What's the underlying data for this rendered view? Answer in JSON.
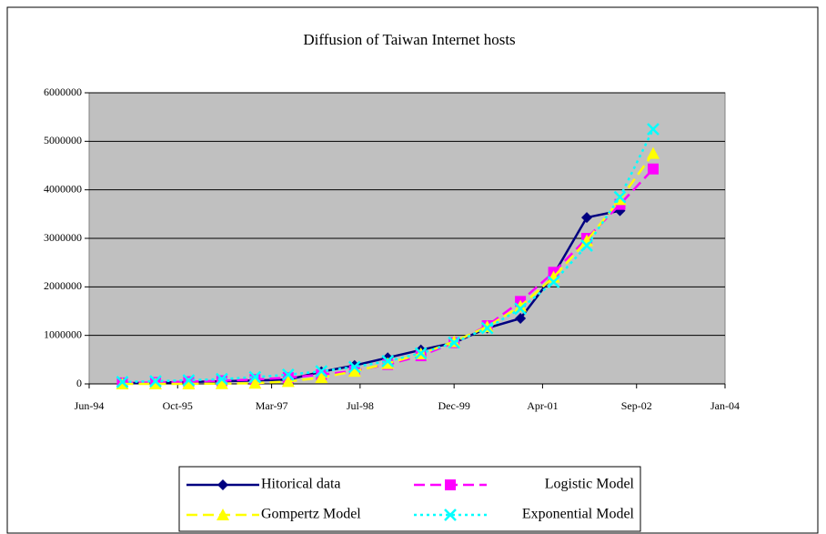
{
  "chart_data": {
    "type": "line",
    "title": "Diffusion of Taiwan Internet hosts",
    "x": [
      "1994-12",
      "1995-06",
      "1995-12",
      "1996-06",
      "1996-12",
      "1997-06",
      "1997-12",
      "1998-06",
      "1998-12",
      "1999-06",
      "1999-12",
      "2000-06",
      "2000-12",
      "2001-06",
      "2001-12",
      "2002-06",
      "2002-12"
    ],
    "series": [
      {
        "name": "Hitorical data",
        "color": "#000080",
        "marker": "diamond",
        "dash": "solid",
        "values": [
          14000,
          25000,
          40000,
          55000,
          70000,
          90000,
          250000,
          380000,
          540000,
          700000,
          850000,
          1150000,
          1350000,
          2250000,
          3430000,
          3570000,
          null
        ]
      },
      {
        "name": "Logistic Model",
        "color": "#ff00ff",
        "marker": "square",
        "dash": "dashed",
        "values": [
          20000,
          30000,
          45000,
          65000,
          90000,
          130000,
          190000,
          270000,
          400000,
          580000,
          850000,
          1200000,
          1700000,
          2300000,
          3000000,
          3700000,
          4430000
        ]
      },
      {
        "name": "Gompertz Model",
        "color": "#ffff00",
        "marker": "triangle",
        "dash": "dashed",
        "values": [
          0,
          0,
          0,
          5000,
          15000,
          50000,
          130000,
          260000,
          420000,
          620000,
          870000,
          1180000,
          1600000,
          2200000,
          2950000,
          3800000,
          4750000
        ]
      },
      {
        "name": "Exponential Model",
        "color": "#00ffff",
        "marker": "x",
        "dash": "dotted",
        "values": [
          40000,
          55000,
          75000,
          100000,
          140000,
          190000,
          260000,
          350000,
          470000,
          630000,
          850000,
          1150000,
          1550000,
          2100000,
          2850000,
          3850000,
          5250000
        ]
      }
    ],
    "xlim": [
      "1994-06",
      "2004-01"
    ],
    "xticks": [
      {
        "value": "1994-06",
        "label": "Jun-94"
      },
      {
        "value": "1995-10",
        "label": "Oct-95"
      },
      {
        "value": "1997-03",
        "label": "Mar-97"
      },
      {
        "value": "1998-07",
        "label": "Jul-98"
      },
      {
        "value": "1999-12",
        "label": "Dec-99"
      },
      {
        "value": "2001-04",
        "label": "Apr-01"
      },
      {
        "value": "2002-09",
        "label": "Sep-02"
      },
      {
        "value": "2004-01",
        "label": "Jan-04"
      }
    ],
    "ylim": [
      0,
      6000000
    ],
    "yticks": [
      0,
      1000000,
      2000000,
      3000000,
      4000000,
      5000000,
      6000000
    ],
    "grid": true,
    "plot_background": "#c0c0c0",
    "legend": "bottom"
  }
}
